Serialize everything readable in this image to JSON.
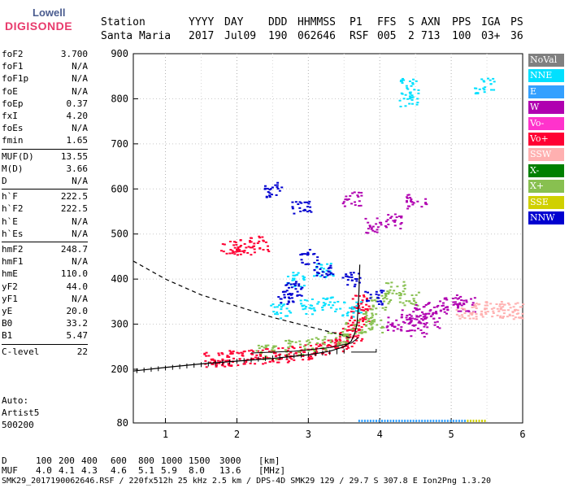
{
  "logo": {
    "line1": "Lowell",
    "line2": "DIGISONDE"
  },
  "header": {
    "labels": [
      "Station",
      "YYYY",
      "DAY",
      "DDD",
      "HHMMSS",
      "P1",
      "FFS",
      "S",
      "AXN",
      "PPS",
      "IGA",
      "PS"
    ],
    "values": [
      "Santa Maria",
      "2017",
      "Jul09",
      "190",
      "062646",
      "RSF",
      "005",
      "2",
      "713",
      "100",
      "03+",
      "36"
    ]
  },
  "params": [
    {
      "name": "foF2",
      "value": "3.700"
    },
    {
      "name": "foF1",
      "value": "N/A"
    },
    {
      "name": "foF1p",
      "value": "N/A"
    },
    {
      "name": "foE",
      "value": "N/A"
    },
    {
      "name": "foEp",
      "value": "0.37"
    },
    {
      "name": "fxI",
      "value": "4.20"
    },
    {
      "name": "foEs",
      "value": "N/A"
    },
    {
      "name": "fmin",
      "value": "1.65"
    },
    {
      "name": "MUF(D)",
      "value": "13.55"
    },
    {
      "name": "M(D)",
      "value": "3.66"
    },
    {
      "name": "D",
      "value": "N/A"
    },
    {
      "name": "h`F",
      "value": "222.5"
    },
    {
      "name": "h`F2",
      "value": "222.5"
    },
    {
      "name": "h`E",
      "value": "N/A"
    },
    {
      "name": "h`Es",
      "value": "N/A"
    },
    {
      "name": "hmF2",
      "value": "248.7"
    },
    {
      "name": "hmF1",
      "value": "N/A"
    },
    {
      "name": "hmE",
      "value": "110.0"
    },
    {
      "name": "yF2",
      "value": "44.0"
    },
    {
      "name": "yF1",
      "value": "N/A"
    },
    {
      "name": "yE",
      "value": "20.0"
    },
    {
      "name": "B0",
      "value": "33.2"
    },
    {
      "name": "B1",
      "value": "5.47"
    },
    {
      "name": "C-level",
      "value": "22"
    }
  ],
  "auto": {
    "line1": "Auto:",
    "line2": "Artist5",
    "line3": "500200"
  },
  "legend": [
    {
      "label": "NoVal",
      "color": "#808080"
    },
    {
      "label": "NNE",
      "color": "#00e0ff"
    },
    {
      "label": "E",
      "color": "#33a0ff"
    },
    {
      "label": "W",
      "color": "#b000b0"
    },
    {
      "label": "Vo-",
      "color": "#ff33cc"
    },
    {
      "label": "Vo+",
      "color": "#ff0033"
    },
    {
      "label": "SSW",
      "color": "#ffb0b0"
    },
    {
      "label": "X-",
      "color": "#008000"
    },
    {
      "label": "X+",
      "color": "#88c050"
    },
    {
      "label": "SSE",
      "color": "#d0d000"
    },
    {
      "label": "NNW",
      "color": "#0000d0"
    }
  ],
  "footer": {
    "d_label": "D",
    "d_values": [
      "100",
      "200",
      "400",
      "600",
      "800",
      "1000",
      "1500",
      "3000",
      "[km]"
    ],
    "muf_label": "MUF",
    "muf_values": [
      "4.0",
      "4.1",
      "4.3",
      "4.6",
      "5.1",
      "5.9",
      "8.0",
      "13.6",
      "[MHz]"
    ],
    "info": "SMK29_2017190062646.RSF / 220fx512h 25 kHz 2.5 km / DPS-4D SMK29 129 / 29.7 S 307.8 E Ion2Png 1.3.20"
  },
  "chart_data": {
    "type": "scatter",
    "x_ticks": [
      "1",
      "2",
      "3",
      "4",
      "5",
      "6"
    ],
    "y_ticks": [
      "900",
      "800",
      "700",
      "600",
      "500",
      "400",
      "300",
      "200",
      "80"
    ],
    "xlim": [
      0.55,
      6.0
    ],
    "ylim": [
      80,
      900
    ],
    "grid": true,
    "series": [
      {
        "name": "Vo+",
        "color": "#ff0033",
        "points": [
          [
            1.65,
            222
          ],
          [
            1.8,
            224
          ],
          [
            2.0,
            226
          ],
          [
            2.2,
            228
          ],
          [
            2.4,
            230
          ],
          [
            2.6,
            233
          ],
          [
            2.8,
            236
          ],
          [
            3.0,
            240
          ],
          [
            3.2,
            246
          ],
          [
            3.4,
            256
          ],
          [
            3.5,
            266
          ],
          [
            3.6,
            282
          ],
          [
            3.65,
            300
          ],
          [
            3.7,
            325
          ],
          [
            3.72,
            350
          ],
          [
            1.9,
            470
          ],
          [
            2.1,
            472
          ],
          [
            2.3,
            480
          ]
        ]
      },
      {
        "name": "X+",
        "color": "#88c050",
        "points": [
          [
            2.4,
            240
          ],
          [
            2.8,
            250
          ],
          [
            3.1,
            258
          ],
          [
            3.4,
            270
          ],
          [
            3.6,
            290
          ],
          [
            3.8,
            320
          ],
          [
            4.0,
            350
          ],
          [
            4.2,
            380
          ],
          [
            4.4,
            360
          ],
          [
            3.9,
            300
          ]
        ]
      },
      {
        "name": "W",
        "color": "#b000b0",
        "points": [
          [
            4.2,
            300
          ],
          [
            4.4,
            320
          ],
          [
            4.6,
            330
          ],
          [
            4.8,
            340
          ],
          [
            5.0,
            350
          ],
          [
            5.2,
            345
          ],
          [
            4.5,
            290
          ],
          [
            4.7,
            310
          ],
          [
            3.6,
            580
          ],
          [
            3.9,
            520
          ],
          [
            4.2,
            530
          ],
          [
            4.5,
            575
          ]
        ]
      },
      {
        "name": "SSW",
        "color": "#ffb0b0",
        "points": [
          [
            5.2,
            330
          ],
          [
            5.4,
            335
          ],
          [
            5.6,
            335
          ],
          [
            5.8,
            332
          ],
          [
            5.95,
            330
          ]
        ]
      },
      {
        "name": "NNE",
        "color": "#00e0ff",
        "points": [
          [
            2.6,
            330
          ],
          [
            3.0,
            340
          ],
          [
            3.3,
            345
          ],
          [
            3.6,
            335
          ],
          [
            2.8,
            400
          ],
          [
            3.2,
            420
          ],
          [
            4.4,
            800
          ],
          [
            4.4,
            830
          ],
          [
            5.45,
            830
          ]
        ]
      },
      {
        "name": "NNW",
        "color": "#0000d0",
        "points": [
          [
            2.5,
            600
          ],
          [
            2.9,
            560
          ],
          [
            3.0,
            450
          ],
          [
            3.2,
            420
          ],
          [
            3.6,
            400
          ],
          [
            3.9,
            360
          ],
          [
            2.8,
            380
          ],
          [
            2.7,
            360
          ]
        ]
      }
    ]
  }
}
